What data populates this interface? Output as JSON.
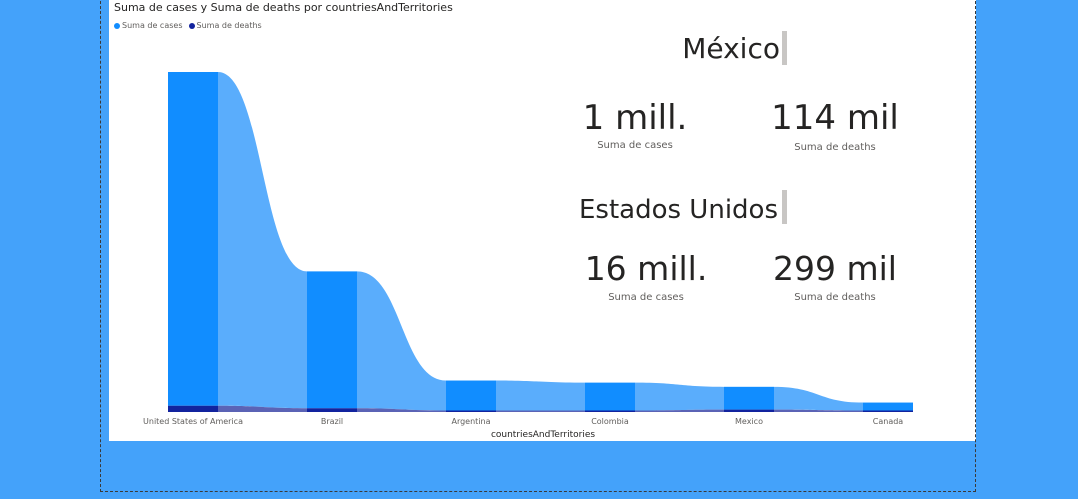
{
  "chart_data": {
    "type": "ribbon",
    "title": "Suma de cases y Suma de deaths por countriesAndTerritories",
    "xlabel": "countriesAndTerritories",
    "categories": [
      "United States of America",
      "Brazil",
      "Argentina",
      "Colombia",
      "Mexico",
      "Canada"
    ],
    "series": [
      {
        "name": "Suma de cases",
        "values": [
          16200000,
          6700000,
          1500000,
          1400000,
          1200000,
          450000
        ]
      },
      {
        "name": "Suma de deaths",
        "values": [
          299000,
          179000,
          40000,
          38000,
          114000,
          13000
        ]
      }
    ],
    "ylim": [
      0,
      16200000
    ],
    "legend_position": "top-left",
    "grid": false
  },
  "legend": {
    "cases_label": "Suma de cases",
    "deaths_label": "Suma de deaths"
  },
  "colors": {
    "cases": "#118dff",
    "cases_ribbon": "#5aadfc",
    "deaths": "#12239e",
    "deaths_ribbon": "#5b63b5",
    "background": "#44a2fa"
  },
  "kpi": {
    "mexico": {
      "title": "México",
      "cases_value": "1 mill.",
      "cases_label": "Suma de cases",
      "deaths_value": "114 mil",
      "deaths_label": "Suma de deaths"
    },
    "usa": {
      "title": "Estados Unidos",
      "cases_value": "16 mill.",
      "cases_label": "Suma de cases",
      "deaths_value": "299 mil",
      "deaths_label": "Suma de deaths"
    }
  }
}
